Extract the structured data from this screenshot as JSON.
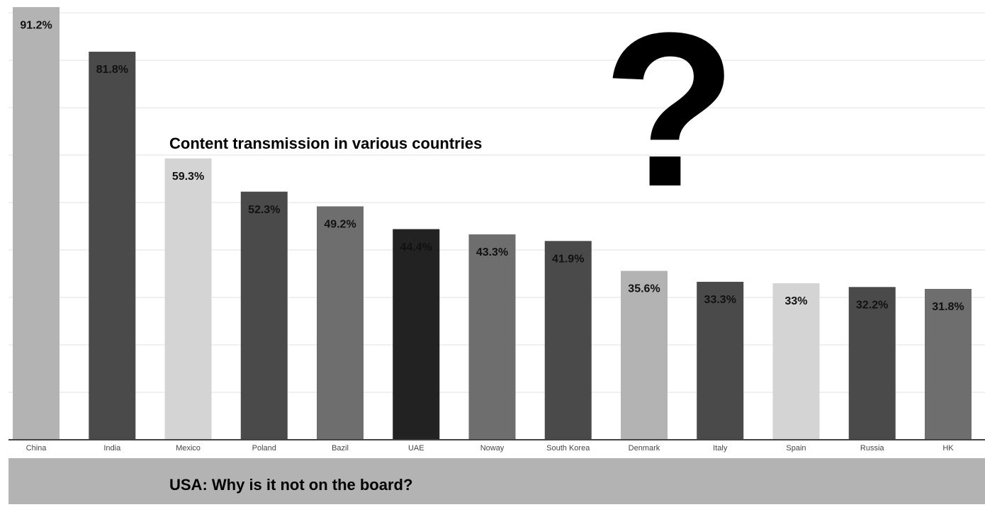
{
  "chart_data": {
    "type": "bar",
    "title": "Content transmission in various countries",
    "annotation": "?",
    "footer": "USA: Why is it not on the board?",
    "categories": [
      "China",
      "India",
      "Mexico",
      "Poland",
      "Bazil",
      "UAE",
      "Noway",
      "South Korea",
      "Denmark",
      "Italy",
      "Spain",
      "Russia",
      "HK"
    ],
    "values": [
      91.2,
      81.8,
      59.3,
      52.3,
      49.2,
      44.4,
      43.3,
      41.9,
      35.6,
      33.3,
      33,
      32.2,
      31.8
    ],
    "value_labels": [
      "91.2%",
      "81.8%",
      "59.3%",
      "52.3%",
      "49.2%",
      "44.4%",
      "43.3%",
      "41.9%",
      "35.6%",
      "33.3%",
      "33%",
      "32.2%",
      "31.8%"
    ],
    "colors": [
      "#b3b3b3",
      "#4a4a4a",
      "#d4d4d4",
      "#4a4a4a",
      "#6e6e6e",
      "#222222",
      "#6e6e6e",
      "#4a4a4a",
      "#b3b3b3",
      "#4a4a4a",
      "#d4d4d4",
      "#4a4a4a",
      "#6e6e6e"
    ],
    "ylim": [
      0,
      92.7
    ],
    "yticks": [
      0,
      10,
      20,
      30,
      40,
      50,
      60,
      70,
      80,
      90
    ],
    "ytick_labels": false,
    "grid": true
  }
}
